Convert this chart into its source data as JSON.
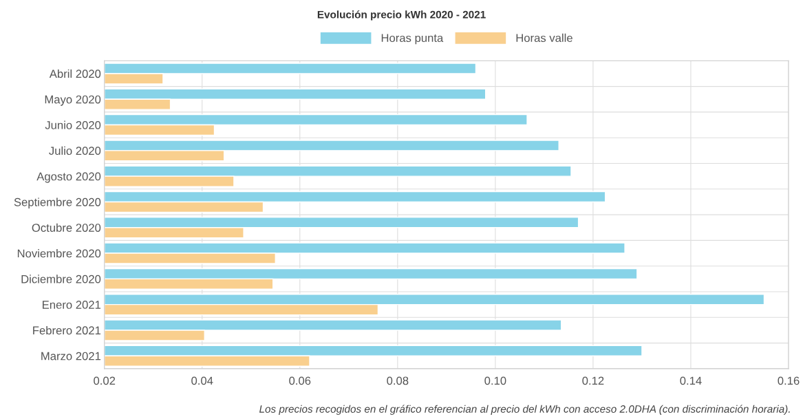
{
  "chart_data": {
    "type": "bar",
    "orientation": "horizontal",
    "title": "Evolución precio kWh 2020 - 2021",
    "categories": [
      "Abril 2020",
      "Mayo 2020",
      "Junio 2020",
      "Julio 2020",
      "Agosto 2020",
      "Septiembre 2020",
      "Octubre 2020",
      "Noviembre 2020",
      "Diciembre 2020",
      "Enero 2021",
      "Febrero 2021",
      "Marzo 2021"
    ],
    "series": [
      {
        "name": "Horas punta",
        "color": "#87d3e8",
        "values": [
          0.096,
          0.098,
          0.1065,
          0.113,
          0.1155,
          0.1225,
          0.117,
          0.1265,
          0.129,
          0.155,
          0.1135,
          0.13
        ]
      },
      {
        "name": "Horas valle",
        "color": "#f9cf8e",
        "values": [
          0.032,
          0.0335,
          0.0425,
          0.0445,
          0.0465,
          0.0525,
          0.0485,
          0.055,
          0.0545,
          0.076,
          0.0405,
          0.062
        ]
      }
    ],
    "xlim": [
      0.02,
      0.16
    ],
    "xticks": [
      0.02,
      0.04,
      0.06,
      0.08,
      {
        "value": 0.1,
        "label": "0.10"
      },
      0.12,
      0.14,
      0.16
    ],
    "grid": true,
    "legend": "top",
    "annotations": [
      "Los precios recogidos en el gráfico referencian al precio del kWh con acceso 2.0DHA (con discriminación horaria)."
    ]
  }
}
